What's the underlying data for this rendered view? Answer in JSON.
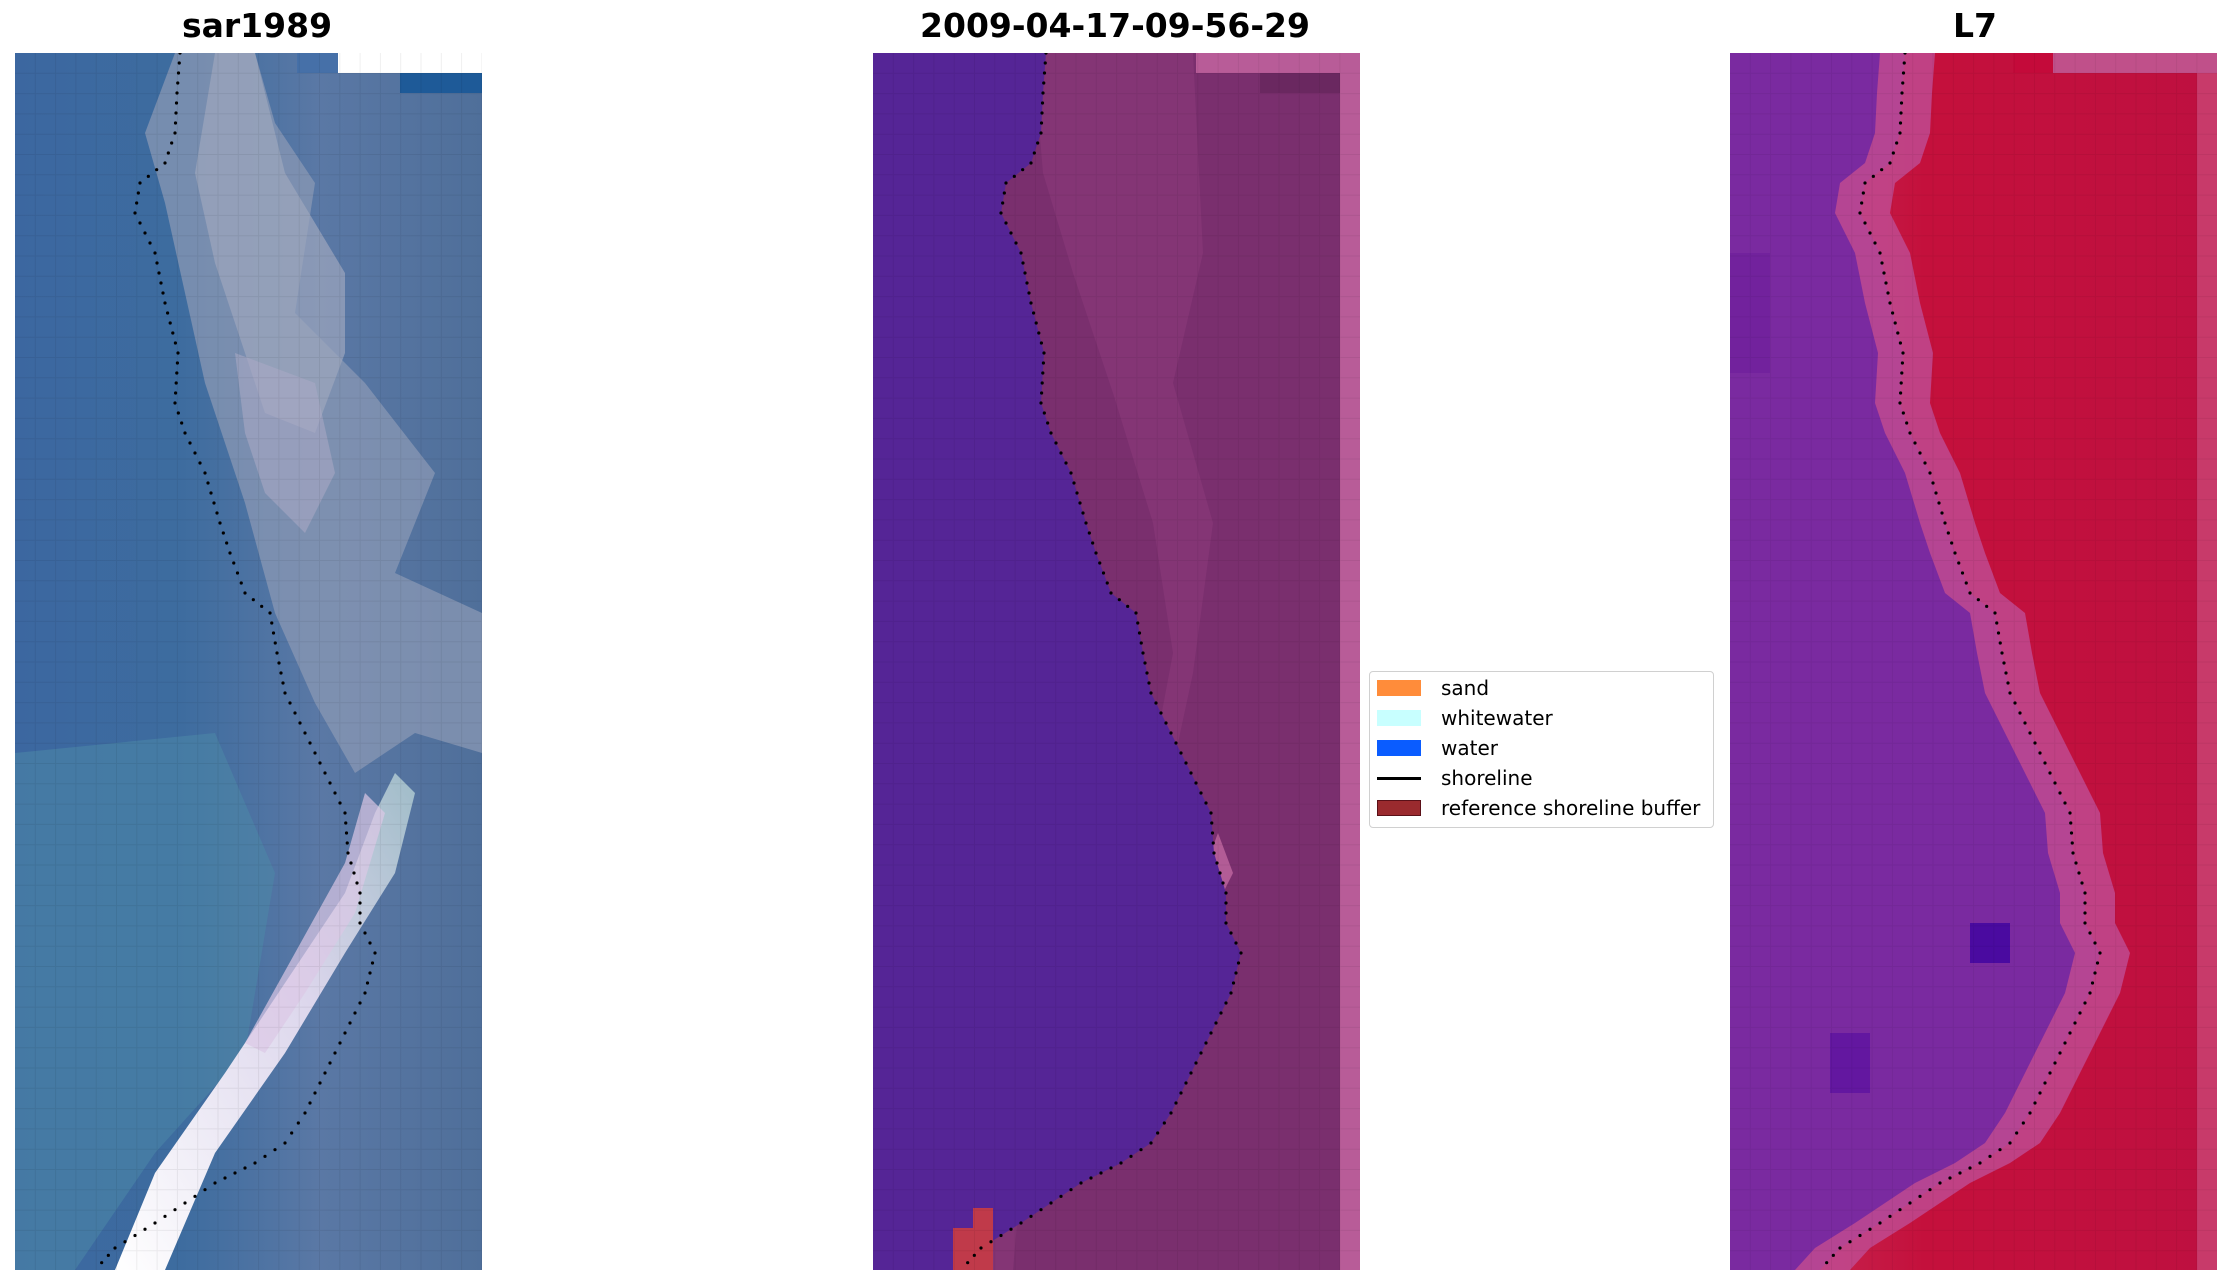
{
  "panels": [
    {
      "id": "rgb",
      "title": "sar1989"
    },
    {
      "id": "classified",
      "title": "2009-04-17-09-56-29"
    },
    {
      "id": "index",
      "title": "L7"
    }
  ],
  "legend": {
    "items": [
      {
        "label": "sand",
        "color": "#ff8c3a",
        "kind": "patch"
      },
      {
        "label": "whitewater",
        "color": "#c8ffff",
        "kind": "patch"
      },
      {
        "label": "water",
        "color": "#0a5cff",
        "kind": "patch"
      },
      {
        "label": "shoreline",
        "color": "#000000",
        "kind": "line"
      },
      {
        "label": "reference shoreline buffer",
        "color": "#9a2a2e",
        "kind": "patch"
      }
    ]
  },
  "colors": {
    "rgb_water": "#3a6aa0",
    "rgb_shore": "#7d8fb3",
    "rgb_whitewater": "#f2f0f8",
    "class_water": "#552596",
    "class_land": "#7a2f6e",
    "class_edge": "#b85c98",
    "index_water": "#7a2aa0",
    "index_land": "#c0103a",
    "shoreline_dots": "#000000"
  }
}
